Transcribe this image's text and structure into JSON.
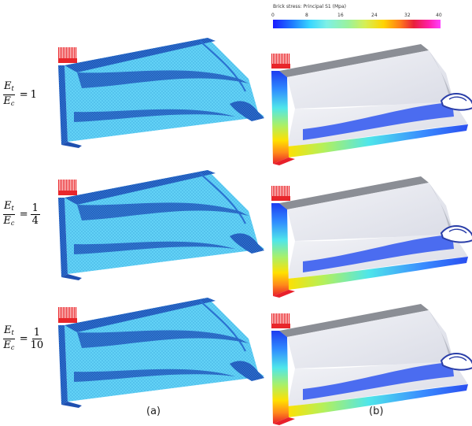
{
  "colorbar": {
    "title": "Brick stress: Principal S1 (Mpa)",
    "ticks": [
      "0",
      "8",
      "16",
      "24",
      "32",
      "40"
    ],
    "min": 0,
    "max": 40
  },
  "rows": [
    {
      "num": "E",
      "num_sub": "t",
      "den": "E",
      "den_sub": "c",
      "eq": "=",
      "value": "1",
      "value_num": "",
      "value_den": ""
    },
    {
      "num": "E",
      "num_sub": "t",
      "den": "E",
      "den_sub": "c",
      "eq": "=",
      "value": "",
      "value_num": "1",
      "value_den": "4"
    },
    {
      "num": "E",
      "num_sub": "t",
      "den": "E",
      "den_sub": "c",
      "eq": "=",
      "value": "",
      "value_num": "1",
      "value_den": "10"
    }
  ],
  "panel_labels": {
    "a": "(a)",
    "b": "(b)"
  },
  "colors": {
    "mesh_light": "#5fd0f5",
    "mesh_dark": "#1e4fb0",
    "load_red": "#e8262b",
    "body_white": "#eef0f5",
    "top_gray": "#8a8d93"
  }
}
